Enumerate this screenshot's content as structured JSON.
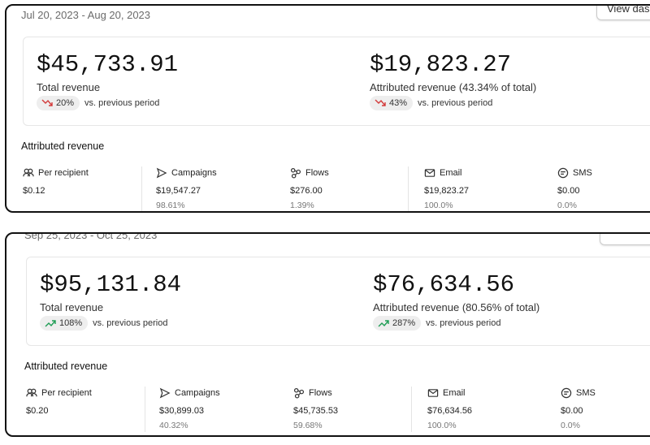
{
  "panels": [
    {
      "date_range": "Jul 20, 2023 - Aug 20, 2023",
      "button": "View dash",
      "metrics": [
        {
          "value": "$45,733.91",
          "label": "Total revenue",
          "change": "20%",
          "direction": "down",
          "comparison": "vs. previous period"
        },
        {
          "value": "$19,823.27",
          "label": "Attributed revenue (43.34% of total)",
          "change": "43%",
          "direction": "down",
          "comparison": "vs. previous period"
        }
      ],
      "section_title": "Attributed revenue",
      "stats": [
        {
          "label": "Per recipient",
          "icon": "people",
          "value": "$0.12"
        },
        {
          "label": "Campaigns",
          "icon": "send",
          "value": "$19,547.27",
          "share": "98.61%"
        },
        {
          "label": "Flows",
          "icon": "flows",
          "value": "$276.00",
          "share": "1.39%"
        },
        {
          "label": "Email",
          "icon": "mail",
          "value": "$19,823.27",
          "share": "100.0%"
        },
        {
          "label": "SMS",
          "icon": "sms",
          "value": "$0.00",
          "share": "0.0%"
        }
      ]
    },
    {
      "date_range": "Sep 25, 2023 - Oct 25, 2023",
      "metrics": [
        {
          "value": "$95,131.84",
          "label": "Total revenue",
          "change": "108%",
          "direction": "up",
          "comparison": "vs. previous period"
        },
        {
          "value": "$76,634.56",
          "label": "Attributed revenue (80.56% of total)",
          "change": "287%",
          "direction": "up",
          "comparison": "vs. previous period"
        }
      ],
      "section_title": "Attributed revenue",
      "stats": [
        {
          "label": "Per recipient",
          "icon": "people",
          "value": "$0.20"
        },
        {
          "label": "Campaigns",
          "icon": "send",
          "value": "$30,899.03",
          "share": "40.32%"
        },
        {
          "label": "Flows",
          "icon": "flows",
          "value": "$45,735.53",
          "share": "59.68%"
        },
        {
          "label": "Email",
          "icon": "mail",
          "value": "$76,634.56",
          "share": "100.0%"
        },
        {
          "label": "SMS",
          "icon": "sms",
          "value": "$0.00",
          "share": "0.0%"
        }
      ]
    }
  ]
}
